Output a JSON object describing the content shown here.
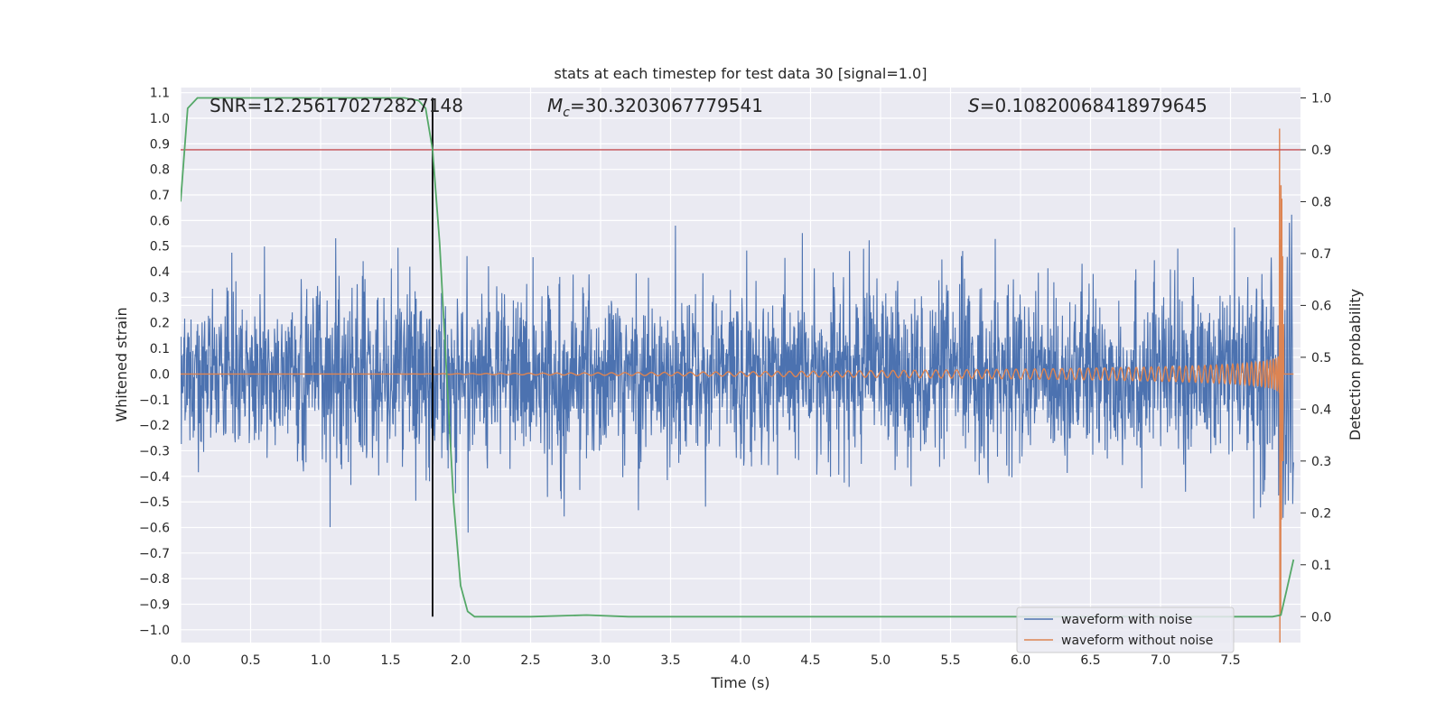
{
  "chart_data": {
    "type": "line",
    "title": "stats at each timestep for test data 30 [signal=1.0]",
    "xlabel": "Time (s)",
    "ylabel": "Whitened strain",
    "y2label": "Detection probability",
    "xlim": [
      0,
      8
    ],
    "ylim": [
      -1.05,
      1.12
    ],
    "y2lim": [
      -0.05,
      1.02
    ],
    "xticks": [
      "0.0",
      "0.5",
      "1.0",
      "1.5",
      "2.0",
      "2.5",
      "3.0",
      "3.5",
      "4.0",
      "4.5",
      "5.0",
      "5.5",
      "6.0",
      "6.5",
      "7.0",
      "7.5"
    ],
    "yticks": [
      "1.1",
      "1.0",
      "0.9",
      "0.8",
      "0.7",
      "0.6",
      "0.5",
      "0.4",
      "0.3",
      "0.2",
      "0.1",
      "0.0",
      "−0.1",
      "−0.2",
      "−0.3",
      "−0.4",
      "−0.5",
      "−0.6",
      "−0.7",
      "−0.8",
      "−0.9",
      "−1.0"
    ],
    "y2ticks": [
      "1.0",
      "0.9",
      "0.8",
      "0.7",
      "0.6",
      "0.5",
      "0.4",
      "0.3",
      "0.2",
      "0.1",
      "0.0"
    ],
    "grid": true,
    "legend_placement": "lower-right",
    "annotations": {
      "snr": "SNR=12.256170272827148",
      "mc_symbol": "M",
      "mc_sub": "c",
      "mc_value": "=30.3203067779541",
      "s_symbol": "S",
      "s_value": "=0.10820068418979645"
    },
    "colors": {
      "noise": "#4c72b0",
      "clean": "#dd8452",
      "probability": "#55a868",
      "threshold": "#c44e52",
      "detection": "#000000",
      "background": "#eaeaf2"
    },
    "series": [
      {
        "name": "waveform with noise",
        "kind": "noisy-strain",
        "envelope_typical": 0.3,
        "peak_max": 0.85,
        "peak_min": -0.75
      },
      {
        "name": "waveform without noise",
        "kind": "chirp",
        "merger_time": 7.88,
        "peak_amplitude": 1.07
      },
      {
        "kind": "detection-probability",
        "axis": "right",
        "x": [
          0.0,
          0.05,
          0.12,
          0.3,
          0.6,
          1.0,
          1.4,
          1.6,
          1.7,
          1.75,
          1.8,
          1.85,
          1.9,
          1.95,
          2.0,
          2.05,
          2.1,
          2.15,
          2.5,
          2.9,
          3.2,
          4.0,
          5.0,
          6.0,
          7.0,
          7.5,
          7.8,
          7.86,
          7.9,
          7.95
        ],
        "y": [
          0.8,
          0.98,
          1.0,
          1.0,
          1.0,
          1.0,
          1.0,
          1.0,
          0.995,
          0.98,
          0.9,
          0.72,
          0.47,
          0.22,
          0.06,
          0.01,
          0.0,
          0.0,
          0.0,
          0.003,
          0.0,
          0.0,
          0.0,
          0.0,
          0.0,
          0.0,
          0.0,
          0.003,
          0.05,
          0.11
        ]
      }
    ],
    "threshold_y2": 0.9,
    "detection_time": 1.8
  }
}
